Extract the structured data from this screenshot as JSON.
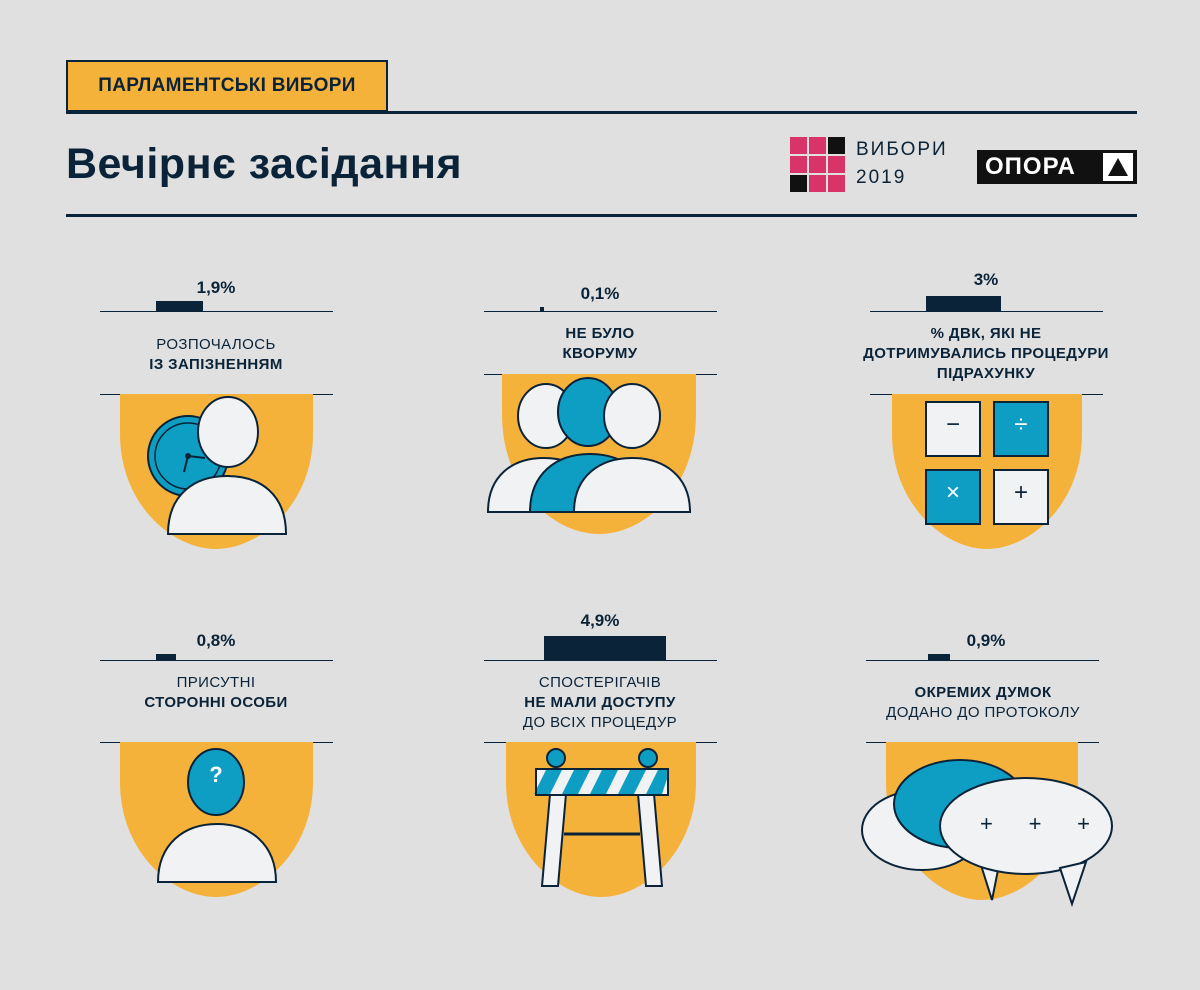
{
  "header": {
    "tag": "ПАРЛАМЕНТСЬКІ ВИБОРИ",
    "title": "Вечірнє засідання",
    "logo_line1": "ВИБОРИ",
    "logo_line2": "2019",
    "brand": "ОПОРА"
  },
  "colors": {
    "accent": "#f5b23b",
    "teal": "#0f9ec3",
    "navy": "#0b2338",
    "pink": "#d8346a"
  },
  "chart_data": {
    "type": "bar",
    "categories": [
      "РОЗПОЧАЛОСЬ ІЗ ЗАПІЗНЕННЯМ",
      "НЕ БУЛО КВОРУМУ",
      "% ДВК, ЯКІ НЕ ДОТРИМУВАЛИСЬ ПРОЦЕДУРИ ПІДРАХУНКУ",
      "ПРИСУТНІ СТОРОННІ ОСОБИ",
      "СПОСТЕРІГАЧІВ НЕ МАЛИ ДОСТУПУ ДО ВСІХ ПРОЦЕДУР",
      "ОКРЕМИХ ДУМОК ДОДАНО ДО ПРОТОКОЛУ"
    ],
    "values": [
      1.9,
      0.1,
      3,
      0.8,
      4.9,
      0.9
    ],
    "unit": "%"
  },
  "items": [
    {
      "value_label": "1,9%",
      "line1": "РОЗПОЧАЛОСЬ",
      "line2": "ІЗ ЗАПІЗНЕННЯМ",
      "line3": "",
      "icon": "person-clock-icon"
    },
    {
      "value_label": "0,1%",
      "line1": "НЕ БУЛО",
      "line2": "КВОРУМУ",
      "line3": "",
      "icon": "group-icon"
    },
    {
      "value_label": "3%",
      "line1": "% ДВК, ЯКІ НЕ",
      "line2": "ДОТРИМУВАЛИСЬ ПРОЦЕДУРИ",
      "line3": "ПІДРАХУНКУ",
      "icon": "calculator-icon"
    },
    {
      "value_label": "0,8%",
      "line1": "ПРИСУТНІ",
      "line2": "СТОРОННІ ОСОБИ",
      "line3": "",
      "icon": "unknown-person-icon"
    },
    {
      "value_label": "4,9%",
      "line1": "СПОСТЕРІГАЧІВ",
      "line2": "НЕ МАЛИ ДОСТУПУ",
      "line3": "ДО ВСІХ ПРОЦЕДУР",
      "icon": "barrier-icon"
    },
    {
      "value_label": "0,9%",
      "line1": "ОКРЕМИХ ДУМОК",
      "line2": "ДОДАНО ДО ПРОТОКОЛУ",
      "line3": "",
      "icon": "speech-bubbles-icon"
    }
  ],
  "icon_glyphs": {
    "minus": "−",
    "divide": "÷",
    "times": "×",
    "plus": "+",
    "question": "?"
  }
}
